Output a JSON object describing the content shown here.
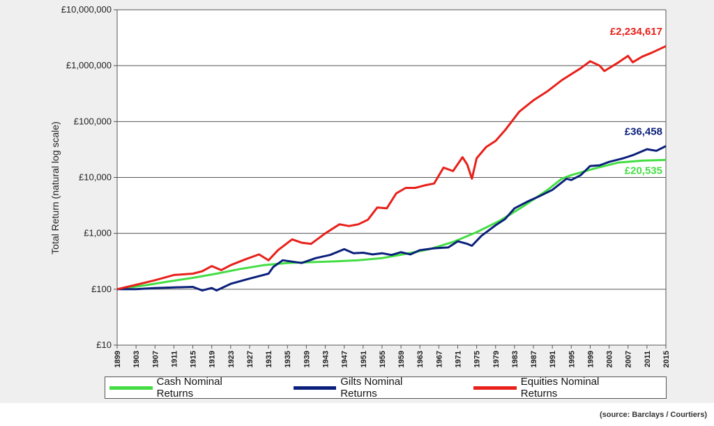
{
  "chart_data": {
    "type": "line",
    "ylabel": "Total Return (natural log scale)",
    "yscale": "log",
    "ylim": [
      10,
      10000000
    ],
    "yticks": [
      "£10",
      "£100",
      "£1,000",
      "£10,000",
      "£100,000",
      "£1,000,000",
      "£10,000,000"
    ],
    "xlim": [
      1899,
      2015
    ],
    "xticks": [
      "1899",
      "1903",
      "1907",
      "1911",
      "1915",
      "1919",
      "1923",
      "1927",
      "1931",
      "1935",
      "1939",
      "1943",
      "1947",
      "1951",
      "1955",
      "1959",
      "1963",
      "1967",
      "1971",
      "1975",
      "1979",
      "1983",
      "1987",
      "1991",
      "1995",
      "1999",
      "2003",
      "2007",
      "2011",
      "2015"
    ],
    "grid": "horizontal",
    "legend_position": "bottom",
    "series": [
      {
        "name": "Cash Nominal Returns",
        "color": "#44dd44",
        "end_label": "£20,535",
        "points": [
          [
            1899,
            100
          ],
          [
            1905,
            118
          ],
          [
            1910,
            138
          ],
          [
            1915,
            160
          ],
          [
            1920,
            190
          ],
          [
            1925,
            230
          ],
          [
            1930,
            270
          ],
          [
            1935,
            295
          ],
          [
            1940,
            305
          ],
          [
            1945,
            315
          ],
          [
            1950,
            330
          ],
          [
            1955,
            360
          ],
          [
            1960,
            430
          ],
          [
            1965,
            520
          ],
          [
            1970,
            700
          ],
          [
            1975,
            1050
          ],
          [
            1980,
            1700
          ],
          [
            1985,
            3100
          ],
          [
            1990,
            6000
          ],
          [
            1993,
            9500
          ],
          [
            1995,
            11000
          ],
          [
            2000,
            14500
          ],
          [
            2005,
            18500
          ],
          [
            2010,
            20000
          ],
          [
            2015,
            20535
          ]
        ]
      },
      {
        "name": "Gilts Nominal Returns",
        "color": "#0a1f7a",
        "end_label": "£36,458",
        "points": [
          [
            1899,
            100
          ],
          [
            1903,
            100
          ],
          [
            1907,
            105
          ],
          [
            1911,
            108
          ],
          [
            1915,
            110
          ],
          [
            1917,
            95
          ],
          [
            1919,
            105
          ],
          [
            1920,
            95
          ],
          [
            1923,
            125
          ],
          [
            1927,
            155
          ],
          [
            1931,
            190
          ],
          [
            1932,
            250
          ],
          [
            1934,
            330
          ],
          [
            1938,
            295
          ],
          [
            1941,
            360
          ],
          [
            1944,
            410
          ],
          [
            1947,
            520
          ],
          [
            1949,
            440
          ],
          [
            1951,
            450
          ],
          [
            1953,
            420
          ],
          [
            1955,
            440
          ],
          [
            1957,
            410
          ],
          [
            1959,
            460
          ],
          [
            1961,
            420
          ],
          [
            1963,
            500
          ],
          [
            1966,
            540
          ],
          [
            1969,
            560
          ],
          [
            1971,
            720
          ],
          [
            1973,
            650
          ],
          [
            1974,
            600
          ],
          [
            1976,
            900
          ],
          [
            1979,
            1400
          ],
          [
            1981,
            1800
          ],
          [
            1983,
            2800
          ],
          [
            1986,
            3800
          ],
          [
            1988,
            4500
          ],
          [
            1991,
            6000
          ],
          [
            1994,
            9500
          ],
          [
            1995,
            9000
          ],
          [
            1997,
            11000
          ],
          [
            1999,
            16000
          ],
          [
            2001,
            16500
          ],
          [
            2003,
            19000
          ],
          [
            2006,
            22000
          ],
          [
            2008,
            25000
          ],
          [
            2011,
            32000
          ],
          [
            2013,
            30000
          ],
          [
            2015,
            36458
          ]
        ]
      },
      {
        "name": "Equities Nominal Returns",
        "color": "#e8201a",
        "end_label": "£2,234,617",
        "points": [
          [
            1899,
            100
          ],
          [
            1903,
            120
          ],
          [
            1907,
            145
          ],
          [
            1911,
            180
          ],
          [
            1915,
            190
          ],
          [
            1917,
            210
          ],
          [
            1919,
            260
          ],
          [
            1921,
            220
          ],
          [
            1923,
            270
          ],
          [
            1926,
            340
          ],
          [
            1929,
            420
          ],
          [
            1931,
            330
          ],
          [
            1933,
            500
          ],
          [
            1936,
            780
          ],
          [
            1938,
            680
          ],
          [
            1940,
            650
          ],
          [
            1943,
            1000
          ],
          [
            1946,
            1450
          ],
          [
            1948,
            1350
          ],
          [
            1950,
            1450
          ],
          [
            1952,
            1750
          ],
          [
            1954,
            2900
          ],
          [
            1956,
            2800
          ],
          [
            1958,
            5200
          ],
          [
            1960,
            6500
          ],
          [
            1962,
            6500
          ],
          [
            1964,
            7200
          ],
          [
            1966,
            7800
          ],
          [
            1968,
            15000
          ],
          [
            1970,
            13000
          ],
          [
            1972,
            23000
          ],
          [
            1973,
            17000
          ],
          [
            1974,
            9500
          ],
          [
            1975,
            22000
          ],
          [
            1977,
            35000
          ],
          [
            1979,
            45000
          ],
          [
            1981,
            70000
          ],
          [
            1984,
            150000
          ],
          [
            1987,
            240000
          ],
          [
            1990,
            350000
          ],
          [
            1993,
            550000
          ],
          [
            1997,
            900000
          ],
          [
            1999,
            1200000
          ],
          [
            2001,
            1000000
          ],
          [
            2002,
            800000
          ],
          [
            2005,
            1150000
          ],
          [
            2007,
            1500000
          ],
          [
            2008,
            1150000
          ],
          [
            2010,
            1450000
          ],
          [
            2012,
            1700000
          ],
          [
            2015,
            2234617
          ]
        ]
      }
    ]
  },
  "source": "(source: Barclays / Courtiers)"
}
